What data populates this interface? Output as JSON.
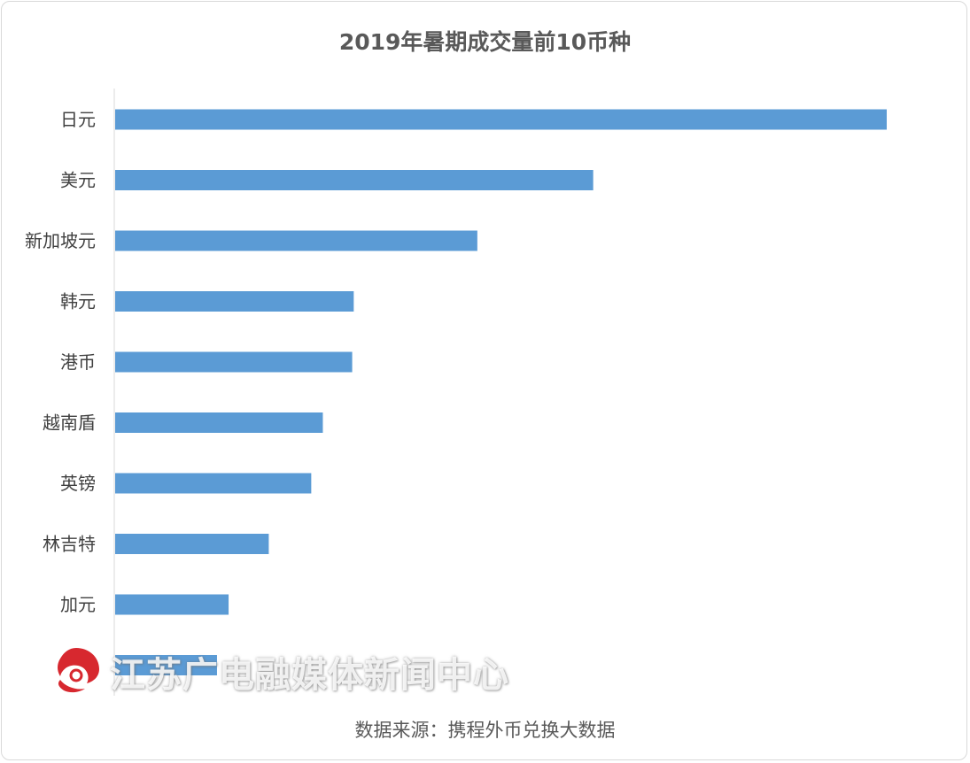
{
  "chart_data": {
    "type": "bar",
    "orientation": "horizontal",
    "title": "2019年暑期成交量前10币种",
    "categories": [
      "日元",
      "美元",
      "新加坡元",
      "韩元",
      "港币",
      "越南盾",
      "英镑",
      "林吉特",
      "加元",
      ""
    ],
    "values": [
      100,
      62,
      47,
      31,
      30.8,
      27,
      25.5,
      20,
      14.8,
      13.3
    ],
    "xlim": [
      0,
      100
    ],
    "bar_color": "#5B9BD5",
    "grid": false,
    "legend": "none"
  },
  "source_text": "数据来源：携程外币兑换大数据",
  "watermark": {
    "text": "江苏广电融媒体新闻中心",
    "logo_color": "#d7282f"
  }
}
